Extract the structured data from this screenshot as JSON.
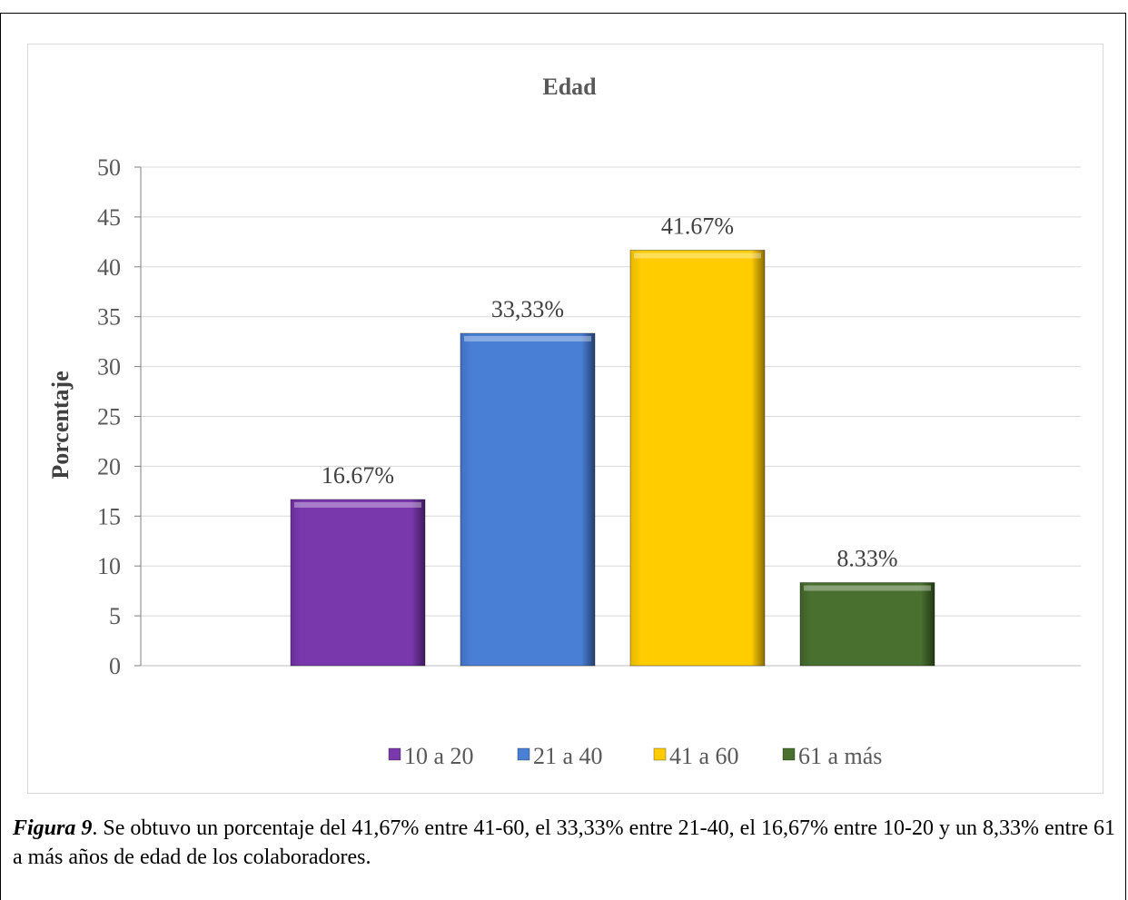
{
  "chart_data": {
    "type": "bar",
    "title": "Edad",
    "xlabel": "",
    "ylabel": "Porcentaje",
    "ylim": [
      0,
      50
    ],
    "yticks": [
      0,
      5,
      10,
      15,
      20,
      25,
      30,
      35,
      40,
      45,
      50
    ],
    "grid": true,
    "legend_position": "bottom",
    "categories": [
      "10 a 20",
      "21  a 40",
      "41 a 60",
      "61 a más"
    ],
    "values": [
      16.67,
      33.33,
      41.67,
      8.33
    ],
    "data_labels": [
      "16.67%",
      "33,33%",
      "41.67%",
      "8.33%"
    ],
    "colors": [
      "#7a38ad",
      "#4a7fd6",
      "#ffcc00",
      "#4a7030"
    ]
  },
  "caption": {
    "figure_label": "Figura 9",
    "text": ". Se obtuvo un porcentaje del  41,67% entre 41-60, el 33,33% entre 21-40, el 16,67% entre 10-20 y un 8,33% entre 61 a más años de edad de los colaboradores."
  }
}
